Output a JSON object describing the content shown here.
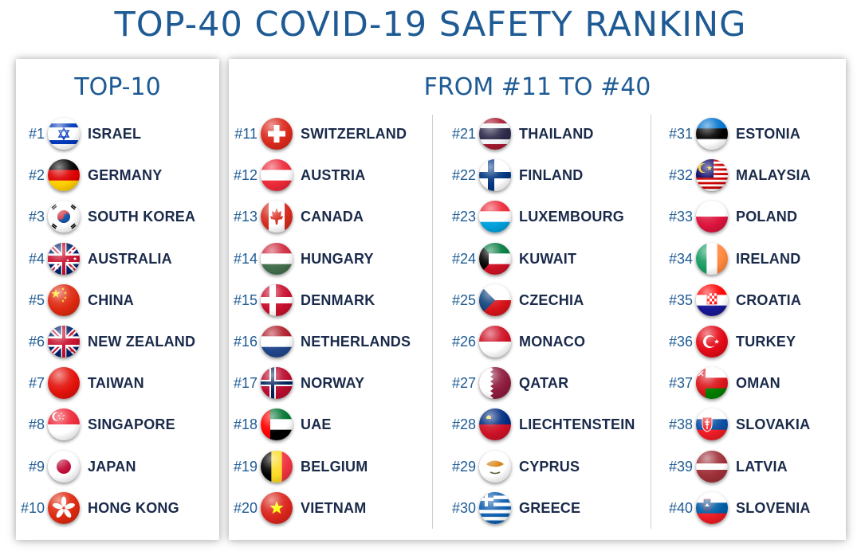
{
  "title": "TOP-40 COVID-19 SAFETY RANKING",
  "top10": {
    "heading": "TOP-10",
    "items": [
      {
        "rank": "#1",
        "country": "ISRAEL",
        "flag": "israel-flag-icon"
      },
      {
        "rank": "#2",
        "country": "GERMANY",
        "flag": "germany-flag-icon"
      },
      {
        "rank": "#3",
        "country": "SOUTH KOREA",
        "flag": "south-korea-flag-icon"
      },
      {
        "rank": "#4",
        "country": "AUSTRALIA",
        "flag": "australia-flag-icon"
      },
      {
        "rank": "#5",
        "country": "CHINA",
        "flag": "china-flag-icon"
      },
      {
        "rank": "#6",
        "country": "NEW ZEALAND",
        "flag": "new-zealand-flag-icon"
      },
      {
        "rank": "#7",
        "country": "TAIWAN",
        "flag": "taiwan-flag-icon"
      },
      {
        "rank": "#8",
        "country": "SINGAPORE",
        "flag": "singapore-flag-icon"
      },
      {
        "rank": "#9",
        "country": "JAPAN",
        "flag": "japan-flag-icon"
      },
      {
        "rank": "#10",
        "country": "HONG KONG",
        "flag": "hong-kong-flag-icon"
      }
    ]
  },
  "rest": {
    "heading": "FROM #11 TO #40",
    "columns": [
      [
        {
          "rank": "#11",
          "country": "SWITZERLAND",
          "flag": "switzerland-flag-icon"
        },
        {
          "rank": "#12",
          "country": "AUSTRIA",
          "flag": "austria-flag-icon"
        },
        {
          "rank": "#13",
          "country": "CANADA",
          "flag": "canada-flag-icon"
        },
        {
          "rank": "#14",
          "country": "HUNGARY",
          "flag": "hungary-flag-icon"
        },
        {
          "rank": "#15",
          "country": "DENMARK",
          "flag": "denmark-flag-icon"
        },
        {
          "rank": "#16",
          "country": "NETHERLANDS",
          "flag": "netherlands-flag-icon"
        },
        {
          "rank": "#17",
          "country": "NORWAY",
          "flag": "norway-flag-icon"
        },
        {
          "rank": "#18",
          "country": "UAE",
          "flag": "uae-flag-icon"
        },
        {
          "rank": "#19",
          "country": "BELGIUM",
          "flag": "belgium-flag-icon"
        },
        {
          "rank": "#20",
          "country": "VIETNAM",
          "flag": "vietnam-flag-icon"
        }
      ],
      [
        {
          "rank": "#21",
          "country": "THAILAND",
          "flag": "thailand-flag-icon"
        },
        {
          "rank": "#22",
          "country": "FINLAND",
          "flag": "finland-flag-icon"
        },
        {
          "rank": "#23",
          "country": "LUXEMBOURG",
          "flag": "luxembourg-flag-icon"
        },
        {
          "rank": "#24",
          "country": "KUWAIT",
          "flag": "kuwait-flag-icon"
        },
        {
          "rank": "#25",
          "country": "CZECHIA",
          "flag": "czechia-flag-icon"
        },
        {
          "rank": "#26",
          "country": "MONACO",
          "flag": "monaco-flag-icon"
        },
        {
          "rank": "#27",
          "country": "QATAR",
          "flag": "qatar-flag-icon"
        },
        {
          "rank": "#28",
          "country": "LIECHTENSTEIN",
          "flag": "liechtenstein-flag-icon"
        },
        {
          "rank": "#29",
          "country": "CYPRUS",
          "flag": "cyprus-flag-icon"
        },
        {
          "rank": "#30",
          "country": "GREECE",
          "flag": "greece-flag-icon"
        }
      ],
      [
        {
          "rank": "#31",
          "country": "ESTONIA",
          "flag": "estonia-flag-icon"
        },
        {
          "rank": "#32",
          "country": "MALAYSIA",
          "flag": "malaysia-flag-icon"
        },
        {
          "rank": "#33",
          "country": "POLAND",
          "flag": "poland-flag-icon"
        },
        {
          "rank": "#34",
          "country": "IRELAND",
          "flag": "ireland-flag-icon"
        },
        {
          "rank": "#35",
          "country": "CROATIA",
          "flag": "croatia-flag-icon"
        },
        {
          "rank": "#36",
          "country": "TURKEY",
          "flag": "turkey-flag-icon"
        },
        {
          "rank": "#37",
          "country": "OMAN",
          "flag": "oman-flag-icon"
        },
        {
          "rank": "#38",
          "country": "SLOVAKIA",
          "flag": "slovakia-flag-icon"
        },
        {
          "rank": "#39",
          "country": "LATVIA",
          "flag": "latvia-flag-icon"
        },
        {
          "rank": "#40",
          "country": "SLOVENIA",
          "flag": "slovenia-flag-icon"
        }
      ]
    ]
  },
  "colors": {
    "heading": "#1e5b94",
    "country_text": "#1a2a4a",
    "rank_text": "#1e5b94"
  }
}
